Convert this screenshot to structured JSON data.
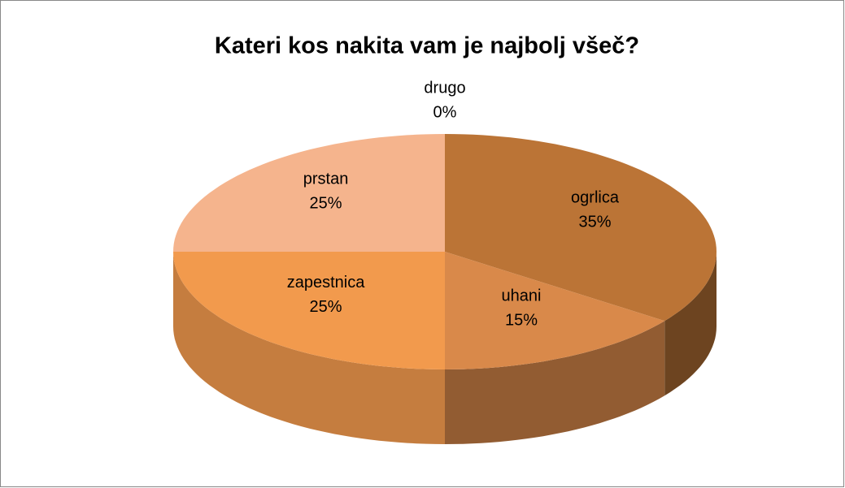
{
  "chart_data": {
    "type": "pie3d",
    "title": "Kateri kos nakita vam je najbolj všeč?",
    "categories": [
      "ogrlica",
      "uhani",
      "zapestnica",
      "prstan",
      "drugo"
    ],
    "values": [
      35,
      15,
      25,
      25,
      0
    ],
    "value_labels": [
      "35%",
      "15%",
      "25%",
      "25%",
      "0%"
    ],
    "colors": [
      "#bb7436",
      "#d9894a",
      "#f29a4d",
      "#f5b48d",
      "#d5d5d5"
    ]
  }
}
